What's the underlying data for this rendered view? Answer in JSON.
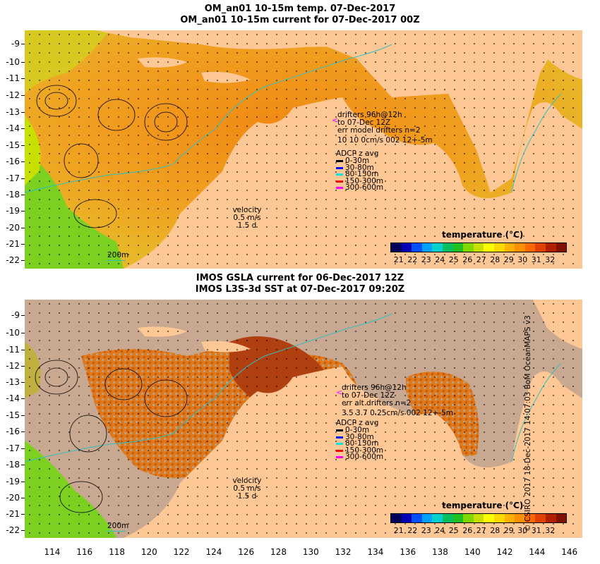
{
  "top_panel": {
    "title_line1": "OM_an01 10-15m temp. 07-Dec-2017",
    "title_line2": "OM_an01 10-15m current for 07-Dec-2017 00Z",
    "drifters_lines": [
      "drifters 96h@12h",
      "to 07-Dec 12Z",
      "err model drifters n=2",
      "10 10 0cm/s 002 12+-5m"
    ],
    "velocity_scale": "200m"
  },
  "bottom_panel": {
    "title_line1": "IMOS GSLA current for 06-Dec-2017 12Z",
    "title_line2": "IMOS L3S-3d SST at 07-Dec-2017 09:20Z",
    "drifters_lines": [
      "drifters 96h@12h",
      "to 07-Dec 12Z",
      "err alt drifters n=2",
      "3.5 3.7 0.25cm/s 002 12+-5m"
    ],
    "velocity_scale": "200m"
  },
  "adcp_legend": {
    "title": "ADCP z avg",
    "items": [
      {
        "label": "0-30m",
        "color": "#000000"
      },
      {
        "label": "30-80m",
        "color": "#0000ff"
      },
      {
        "label": "80-150m",
        "color": "#00e0e0"
      },
      {
        "label": "150-300m",
        "color": "#ff0000"
      },
      {
        "label": "300-600m",
        "color": "#ff00ff"
      }
    ]
  },
  "velocity_key": {
    "label": "velocity",
    "speed": "0.5 m/s",
    "duration": "1.5 d"
  },
  "colorbar": {
    "title": "temperature (°C)",
    "ticks": [
      "21",
      "22",
      "23",
      "24",
      "25",
      "26",
      "27",
      "28",
      "29",
      "30",
      "31",
      "32"
    ],
    "colors": [
      "#00005a",
      "#0000b4",
      "#0050ff",
      "#00a0ff",
      "#00d0d0",
      "#00c060",
      "#20c020",
      "#80d800",
      "#c8e000",
      "#ffff00",
      "#ffd800",
      "#ffb000",
      "#ff9000",
      "#ff6800",
      "#e04000",
      "#b02000",
      "#801000"
    ]
  },
  "axes": {
    "lat_ticks": [
      "-9",
      "-10",
      "-11",
      "-12",
      "-13",
      "-14",
      "-15",
      "-16",
      "-17",
      "-18",
      "-19",
      "-20",
      "-21",
      "-22"
    ],
    "lon_ticks": [
      "114",
      "116",
      "118",
      "120",
      "122",
      "124",
      "126",
      "128",
      "130",
      "132",
      "134",
      "136",
      "138",
      "140",
      "142",
      "144",
      "146"
    ]
  },
  "credit": "© CSIRO 2017   18-Dec-2017 14:07:03 BoM OceanMAPS v3",
  "colors": {
    "land": "#fdc896",
    "ocean_warm": "#f0a020",
    "ocean_hot": "#e07010",
    "ocean_cool": "#7cd020",
    "cloud": "#c8a890"
  }
}
